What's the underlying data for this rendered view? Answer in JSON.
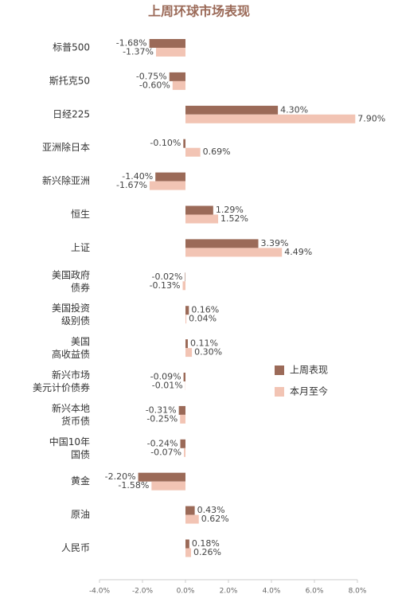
{
  "chart_data": {
    "type": "bar",
    "orientation": "horizontal",
    "title": "上周环球市场表现",
    "categories": [
      "标普500",
      "斯托克50",
      "日经225",
      "亚洲除日本",
      "新兴除亚洲",
      "恒生",
      "上证",
      "美国政府\n债券",
      "美国投资\n级别债",
      "美国\n高收益债",
      "新兴市场\n美元计价债券",
      "新兴本地\n货币债",
      "中国10年\n国债",
      "黄金",
      "原油",
      "人民币"
    ],
    "series": [
      {
        "name": "上周表现",
        "color": "#9b6a58",
        "values": [
          -1.68,
          -0.75,
          4.3,
          -0.1,
          -1.4,
          1.29,
          3.39,
          -0.02,
          0.16,
          0.11,
          -0.09,
          -0.31,
          -0.24,
          -2.2,
          0.43,
          0.18
        ],
        "value_labels": [
          "-1.68%",
          "-0.75%",
          "4.30%",
          "-0.10%",
          "-1.40%",
          "1.29%",
          "3.39%",
          "-0.02%",
          "0.16%",
          "0.11%",
          "-0.09%",
          "-0.31%",
          "-0.24%",
          "-2.20%",
          "0.43%",
          "0.18%"
        ]
      },
      {
        "name": "本月至今",
        "color": "#f2c4b4",
        "values": [
          -1.37,
          -0.6,
          7.9,
          0.69,
          -1.67,
          1.52,
          4.49,
          -0.13,
          0.04,
          0.3,
          -0.01,
          -0.25,
          -0.07,
          -1.58,
          0.62,
          0.26
        ],
        "value_labels": [
          "-1.37%",
          "-0.60%",
          "7.90%",
          "0.69%",
          "-1.67%",
          "1.52%",
          "4.49%",
          "-0.13%",
          "0.04%",
          "0.30%",
          "-0.01%",
          "-0.25%",
          "-0.07%",
          "-1.58%",
          "0.62%",
          "0.26%"
        ]
      }
    ],
    "xlim": [
      -4,
      8
    ],
    "xticks": [
      {
        "value": -4,
        "label": "-4.0%"
      },
      {
        "value": -2,
        "label": "-2.0%"
      },
      {
        "value": 0,
        "label": "0.0%"
      },
      {
        "value": 2,
        "label": "2.0%"
      },
      {
        "value": 4,
        "label": "4.0%"
      },
      {
        "value": 6,
        "label": "6.0%"
      },
      {
        "value": 8,
        "label": "8.0%"
      }
    ],
    "legend": "right"
  }
}
